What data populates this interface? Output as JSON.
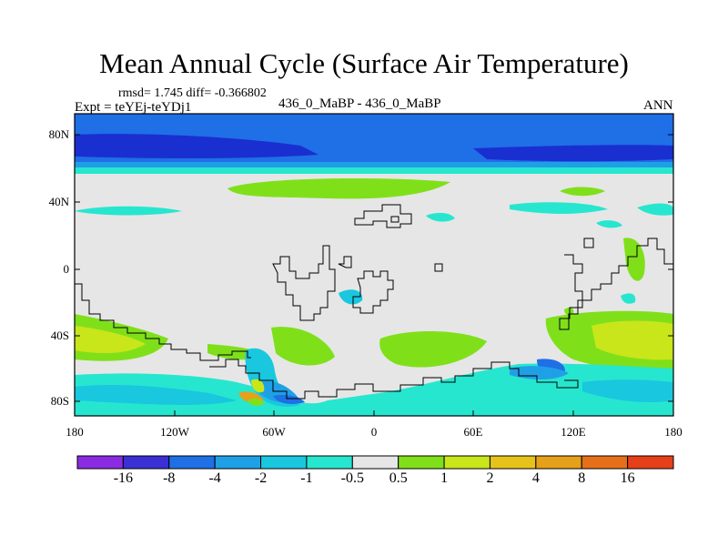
{
  "title": "Mean Annual Cycle (Surface Air Temperature)",
  "stats": "rmsd= 1.745 diff= -0.366802",
  "expt": "Expt = teYEj-teYDj1",
  "case": "436_0_MaBP - 436_0_MaBP",
  "season": "ANN",
  "lat_labels": [
    "80N",
    "40N",
    "0",
    "40S",
    "80S"
  ],
  "lon_labels": [
    "180",
    "120W",
    "60W",
    "0",
    "60E",
    "120E",
    "180"
  ],
  "colorbar": {
    "colors": [
      "#8a2be2",
      "#3b2fd6",
      "#1f6fe6",
      "#1fa0e6",
      "#19c7df",
      "#27e6cf",
      "#e6e6e6",
      "#7fe01a",
      "#c8e61a",
      "#e6c21a",
      "#e6a01a",
      "#e6701a",
      "#e6401a"
    ],
    "labels": [
      "-16",
      "-8",
      "-4",
      "-2",
      "-1",
      "-0.5",
      "0.5",
      "1",
      "2",
      "4",
      "8",
      "16"
    ]
  },
  "field_colors": {
    "neutral": "#e6e6e6",
    "dark_blue": "#1a2fd0",
    "blue": "#1f6fe6",
    "mid_blue": "#1fa0e6",
    "cyan": "#19c7df",
    "light_cyan": "#27e6cf",
    "green": "#7fe01a",
    "yellow_green": "#c8e61a",
    "orange": "#e6a01a",
    "coast": "#000000"
  }
}
